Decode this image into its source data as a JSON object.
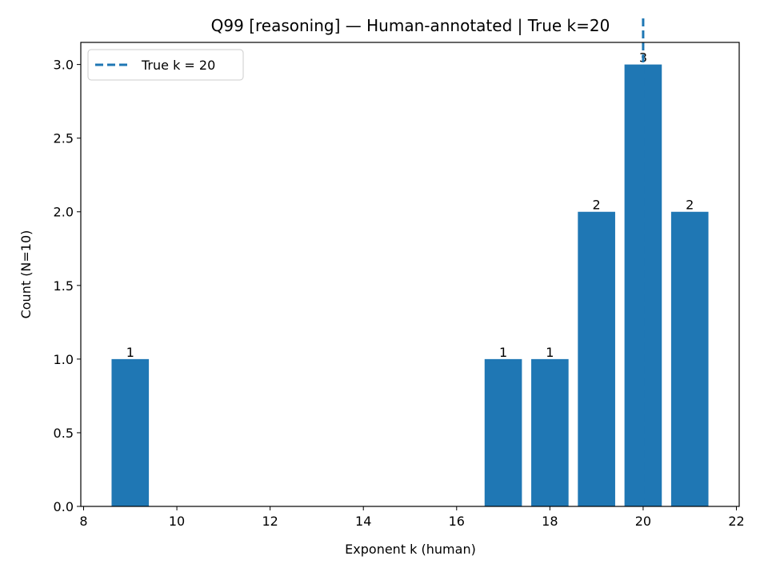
{
  "chart_data": {
    "type": "bar",
    "title": "Q99 [reasoning] — Human-annotated | True k=20",
    "xlabel": "Exponent k (human)",
    "ylabel": "Count (N=10)",
    "x": [
      9,
      17,
      18,
      19,
      20,
      21
    ],
    "values": [
      1,
      1,
      1,
      2,
      3,
      2
    ],
    "bar_labels": [
      "1",
      "1",
      "1",
      "2",
      "3",
      "2"
    ],
    "xlim": [
      7.94,
      22.06
    ],
    "ylim": [
      0,
      3.15
    ],
    "xticks": [
      8,
      10,
      12,
      14,
      16,
      18,
      20,
      22
    ],
    "yticks": [
      0.0,
      0.5,
      1.0,
      1.5,
      2.0,
      2.5,
      3.0
    ],
    "ytick_labels": [
      "0.0",
      "0.5",
      "1.0",
      "1.5",
      "2.0",
      "2.5",
      "3.0"
    ],
    "bar_width": 0.8,
    "bar_color": "#1f77b4",
    "reference_line": {
      "x": 20,
      "style": "dashed",
      "color": "#1f77b4",
      "label": "True k = 20"
    },
    "legend": {
      "position": "top-left",
      "entries": [
        "True k = 20"
      ]
    },
    "grid": false
  }
}
